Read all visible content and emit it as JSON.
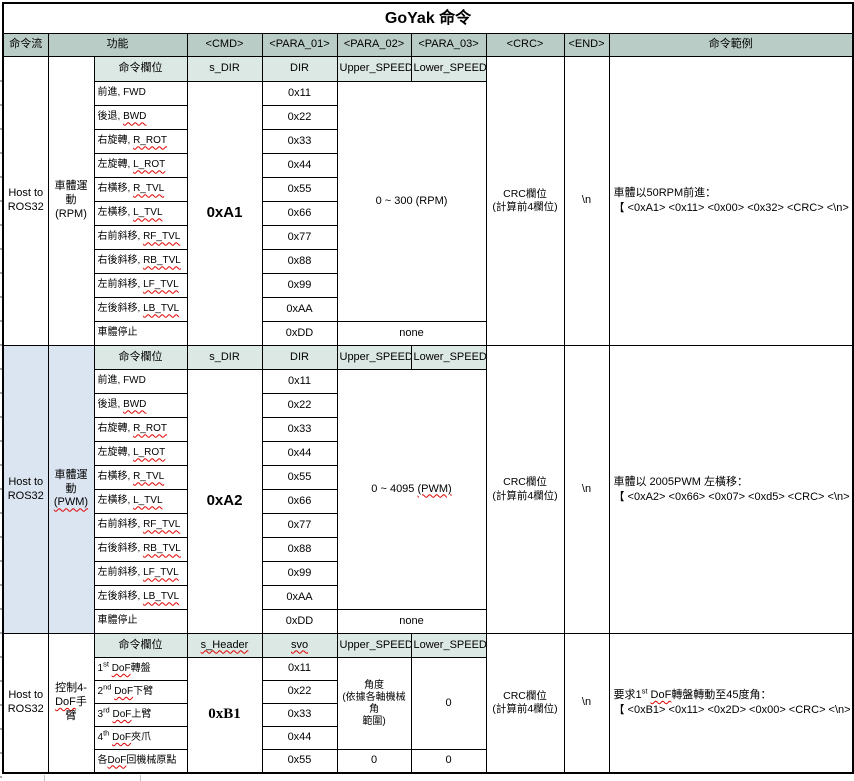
{
  "title": "GoYak 命令",
  "columns": [
    "命令流",
    "功能",
    "<CMD>",
    "<PARA_01>",
    "<PARA_02>",
    "<PARA_03>",
    "<CRC>",
    "<END>",
    "命令範例"
  ],
  "sections": [
    {
      "flow_l1": "Host to",
      "flow_l2": "ROS32",
      "func_l1": "車體運動",
      "func_l2": "(RPM)",
      "sub_field": "命令欄位",
      "sub_cmd": "s_DIR",
      "sub_para01": "DIR",
      "sub_para02": "Upper_SPEED",
      "sub_para03": "Lower_SPEED",
      "cmd": "0xA1",
      "speed_text": "0 ~ 300 (RPM)",
      "speed_wavy": "",
      "none_label": "none",
      "crc_l1": "CRC欄位",
      "crc_l2": "(計算前4欄位)",
      "end_label": "\\n",
      "ex_l1": "車體以50RPM前進：",
      "ex_l2": "【 <0xA1> <0x11> <0x00> <0x32> <CRC> <\\n> 】",
      "rows": [
        {
          "cn": "前進, ",
          "en": "FWD",
          "wavy": false,
          "dir": "0x11"
        },
        {
          "cn": "後退, ",
          "en": "BWD",
          "wavy": true,
          "dir": "0x22"
        },
        {
          "cn": "右旋轉, ",
          "en": "R_ROT",
          "wavy": true,
          "dir": "0x33"
        },
        {
          "cn": "左旋轉, ",
          "en": "L_ROT",
          "wavy": true,
          "dir": "0x44"
        },
        {
          "cn": "右橫移, ",
          "en": "R_TVL",
          "wavy": true,
          "dir": "0x55"
        },
        {
          "cn": "左橫移, ",
          "en": "L_TVL",
          "wavy": true,
          "dir": "0x66"
        },
        {
          "cn": "右前斜移, ",
          "en": "RF_TVL",
          "wavy": true,
          "dir": "0x77"
        },
        {
          "cn": "右後斜移, ",
          "en": "RB_TVL",
          "wavy": true,
          "dir": "0x88"
        },
        {
          "cn": "左前斜移, ",
          "en": "LF_TVL",
          "wavy": true,
          "dir": "0x99"
        },
        {
          "cn": "左後斜移, ",
          "en": "LB_TVL",
          "wavy": true,
          "dir": "0xAA"
        },
        {
          "cn": "車體停止",
          "en": "",
          "wavy": false,
          "dir": "0xDD"
        }
      ]
    },
    {
      "flow_l1": "Host to",
      "flow_l2": "ROS32",
      "func_l1": "車體運動",
      "func_l2": "(PWM)",
      "sub_field": "命令欄位",
      "sub_cmd": "s_DIR",
      "sub_para01": "DIR",
      "sub_para02": "Upper_SPEED",
      "sub_para03": "Lower_SPEED",
      "cmd": "0xA2",
      "speed_text": "0 ~ 4095 ",
      "speed_wavy": "(PWM)",
      "none_label": "none",
      "crc_l1": "CRC欄位",
      "crc_l2": "(計算前4欄位)",
      "end_label": "\\n",
      "ex_l1": "車體以 2005PWM 左橫移：",
      "ex_l2": "【 <0xA2> <0x66> <0x07> <0xd5> <CRC> <\\n> 】",
      "rows": [
        {
          "cn": "前進, ",
          "en": "FWD",
          "wavy": false,
          "dir": "0x11"
        },
        {
          "cn": "後退, ",
          "en": "BWD",
          "wavy": true,
          "dir": "0x22"
        },
        {
          "cn": "右旋轉, ",
          "en": "R_ROT",
          "wavy": true,
          "dir": "0x33"
        },
        {
          "cn": "左旋轉, ",
          "en": "L_ROT",
          "wavy": true,
          "dir": "0x44"
        },
        {
          "cn": "右橫移, ",
          "en": "R_TVL",
          "wavy": true,
          "dir": "0x55"
        },
        {
          "cn": "左橫移, ",
          "en": "L_TVL",
          "wavy": true,
          "dir": "0x66"
        },
        {
          "cn": "右前斜移, ",
          "en": "RF_TVL",
          "wavy": true,
          "dir": "0x77"
        },
        {
          "cn": "右後斜移, ",
          "en": "RB_TVL",
          "wavy": true,
          "dir": "0x88"
        },
        {
          "cn": "左前斜移, ",
          "en": "LF_TVL",
          "wavy": true,
          "dir": "0x99"
        },
        {
          "cn": "左後斜移, ",
          "en": "LB_TVL",
          "wavy": true,
          "dir": "0xAA"
        },
        {
          "cn": "車體停止",
          "en": "",
          "wavy": false,
          "dir": "0xDD"
        }
      ]
    },
    {
      "flow_l1": "Host to",
      "flow_l2": "ROS32",
      "func_l1": "控制4-",
      "func_wavy": "DoF",
      "func_l2": "手臂",
      "sub_field": "命令欄位",
      "sub_cmd": "s_Header",
      "sub_para01": "svo",
      "sub_para02": "Upper_SPEED",
      "sub_para03": "Lower_SPEED",
      "cmd": "0xB1",
      "angle_l1": "角度",
      "angle_l2": "(依據各軸機械角",
      "angle_l3": "範圍)",
      "zero_merged": "0",
      "zero_a": "0",
      "zero_b": "0",
      "crc_l1": "CRC欄位",
      "crc_l2": "(計算前4欄位)",
      "end_label": "\\n",
      "ex_head": "要求1",
      "ex_sup": "st",
      "ex_wavy": "DoF",
      "ex_tail": "轉盤轉動至45度角：",
      "ex_l2": "【 <0xB1> <0x11> <0x2D> <0x00> <CRC> <\\n> 】",
      "rows": [
        {
          "head": "1",
          "sup": "st",
          "mid": "DoF",
          "tail": "轉盤",
          "dir": "0x11"
        },
        {
          "head": "2",
          "sup": "nd",
          "mid": "DoF",
          "tail": "下臂",
          "dir": "0x22"
        },
        {
          "head": "3",
          "sup": "rd",
          "mid": "DoF",
          "tail": "上臂",
          "dir": "0x33"
        },
        {
          "head": "4",
          "sup": "th",
          "mid": "DoF",
          "tail": "夾爪",
          "dir": "0x44"
        },
        {
          "head": "各",
          "sup": "",
          "mid": "DoF",
          "tail": "回機械原點",
          "dir": "0x55"
        }
      ]
    }
  ]
}
